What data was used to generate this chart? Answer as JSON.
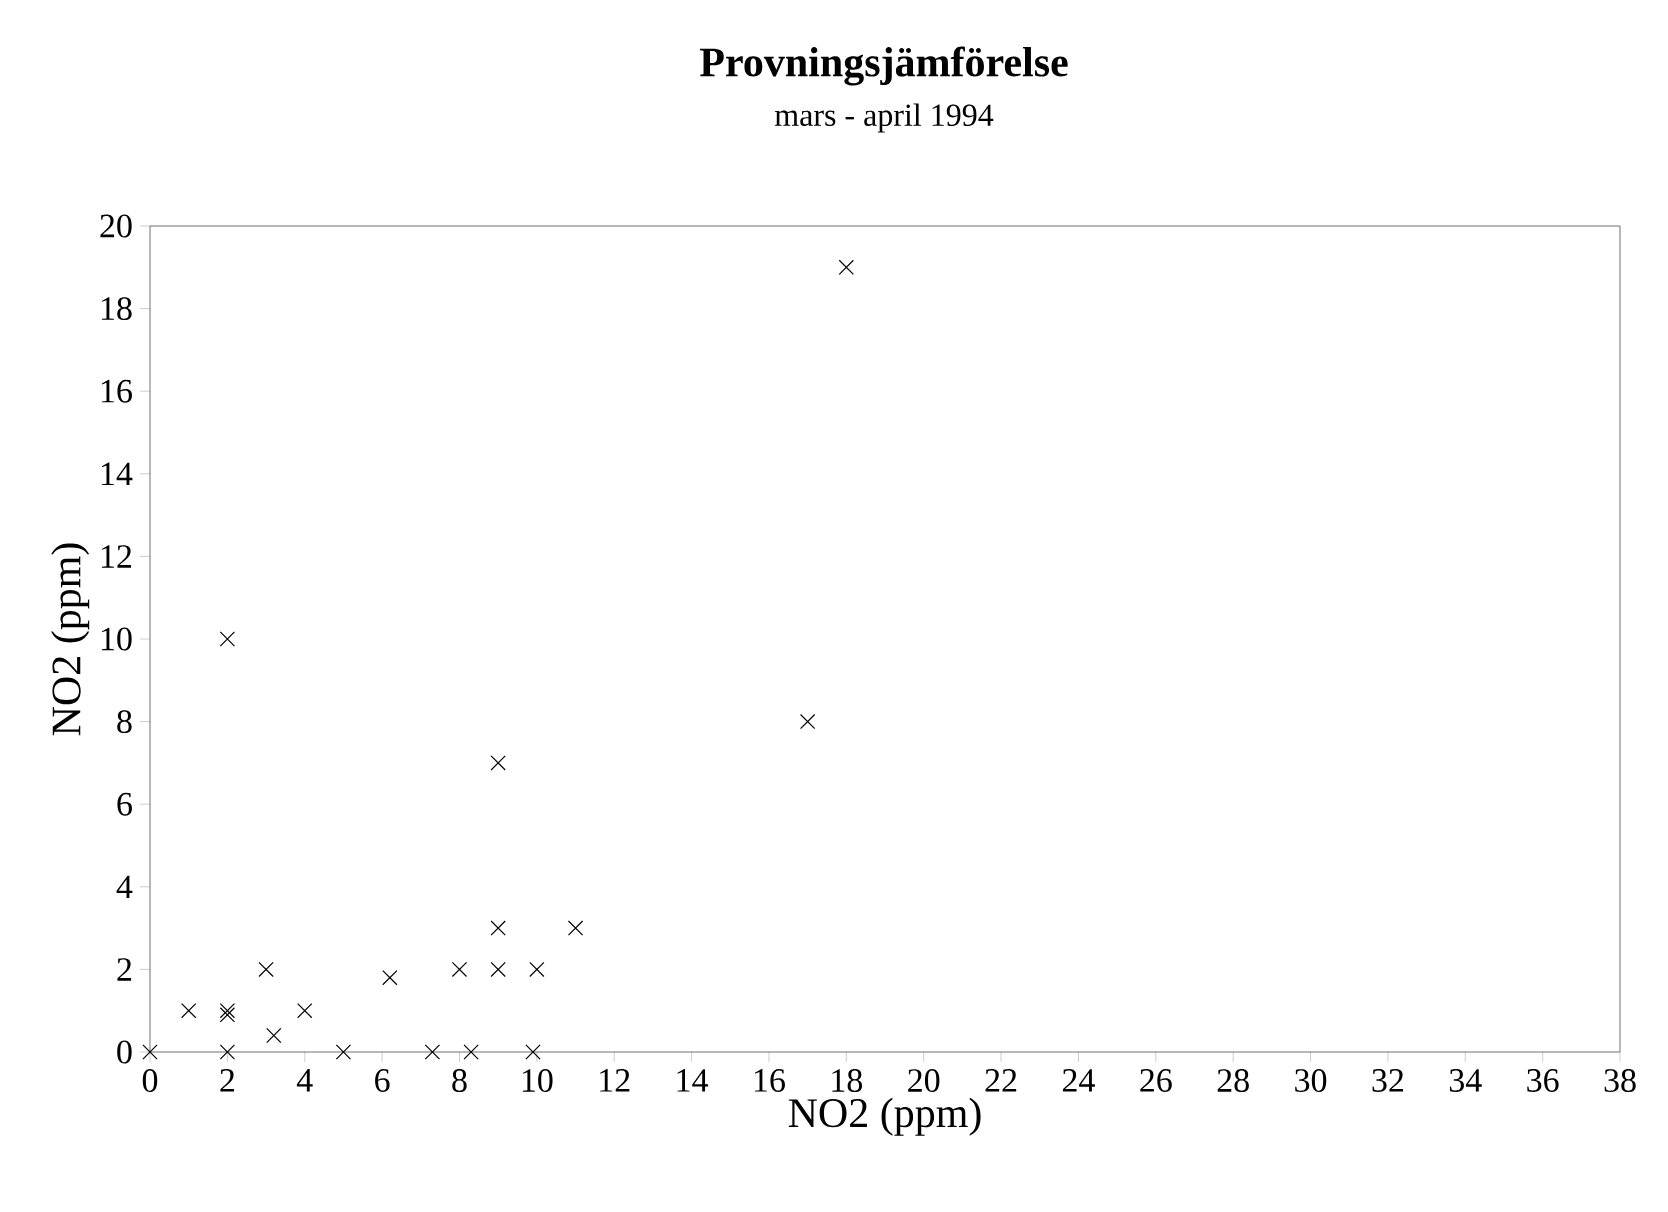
{
  "chart_data": {
    "type": "scatter",
    "title": "Provningsjämförelse",
    "subtitle": "mars - april 1994",
    "xlabel": "NO2 (ppm)",
    "ylabel": "NO2 (ppm)",
    "x": [
      0,
      1,
      2,
      2,
      2,
      2,
      3,
      3.2,
      4,
      5,
      6.2,
      7.3,
      8,
      8.3,
      9,
      9,
      9,
      10,
      9.9,
      11,
      17,
      18
    ],
    "values": [
      0,
      1,
      1,
      0.9,
      10,
      0,
      2,
      0.4,
      1,
      0,
      1.8,
      0,
      2,
      0,
      7,
      3,
      2,
      2,
      0,
      3,
      8,
      19
    ],
    "color": "#000000",
    "marker": "cross",
    "xlim": [
      0,
      38
    ],
    "ylim": [
      0,
      20
    ],
    "xticks": [
      0,
      2,
      4,
      6,
      8,
      10,
      12,
      14,
      16,
      18,
      20,
      22,
      24,
      26,
      28,
      30,
      32,
      34,
      36,
      38
    ],
    "yticks": [
      0,
      2,
      4,
      6,
      8,
      10,
      12,
      14,
      16,
      18,
      20
    ],
    "grid": false
  }
}
